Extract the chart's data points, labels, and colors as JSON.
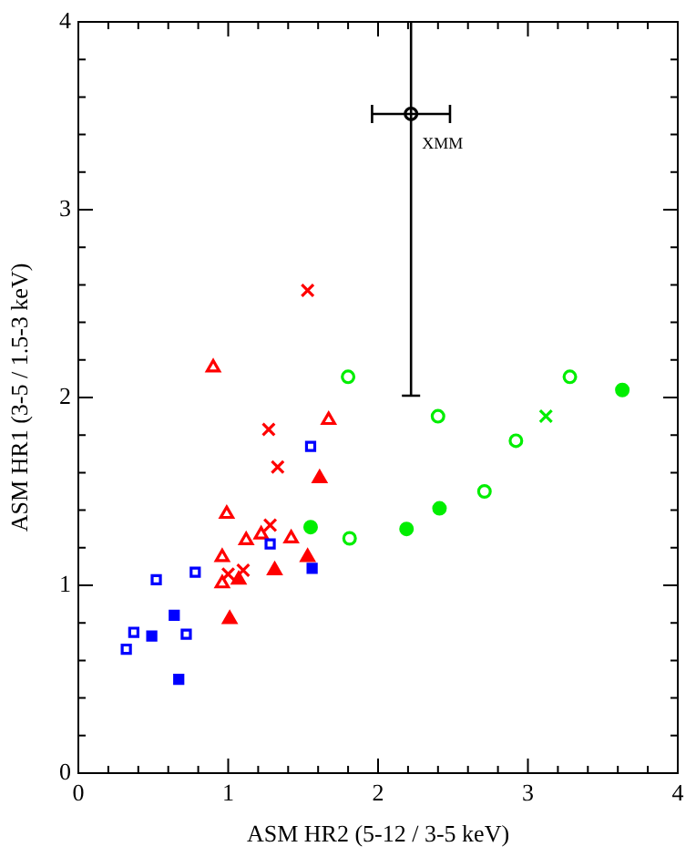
{
  "chart_data": {
    "type": "scatter",
    "xlabel": "ASM HR2 (5-12 / 3-5 keV)",
    "ylabel": "ASM HR1 (3-5 / 1.5-3 keV)",
    "xlim": [
      0,
      4
    ],
    "ylim": [
      0,
      4
    ],
    "xticks": [
      0,
      {
        "value": 0.2,
        "label": null
      },
      {
        "value": 0.4,
        "label": null
      },
      {
        "value": 0.6,
        "label": null
      },
      {
        "value": 0.8,
        "label": null
      },
      1,
      {
        "value": 1.2,
        "label": null
      },
      {
        "value": 1.4,
        "label": null
      },
      {
        "value": 1.6,
        "label": null
      },
      {
        "value": 1.8,
        "label": null
      },
      2,
      {
        "value": 2.2,
        "label": null
      },
      {
        "value": 2.4,
        "label": null
      },
      {
        "value": 2.6,
        "label": null
      },
      {
        "value": 2.8,
        "label": null
      },
      3,
      {
        "value": 3.2,
        "label": null
      },
      {
        "value": 3.4,
        "label": null
      },
      {
        "value": 3.6,
        "label": null
      },
      {
        "value": 3.8,
        "label": null
      },
      4
    ],
    "yticks": [
      0,
      {
        "value": 0.2,
        "label": null
      },
      {
        "value": 0.4,
        "label": null
      },
      {
        "value": 0.6,
        "label": null
      },
      {
        "value": 0.8,
        "label": null
      },
      1,
      {
        "value": 1.2,
        "label": null
      },
      {
        "value": 1.4,
        "label": null
      },
      {
        "value": 1.6,
        "label": null
      },
      {
        "value": 1.8,
        "label": null
      },
      2,
      {
        "value": 2.2,
        "label": null
      },
      {
        "value": 2.4,
        "label": null
      },
      {
        "value": 2.6,
        "label": null
      },
      {
        "value": 2.8,
        "label": null
      },
      3,
      {
        "value": 3.2,
        "label": null
      },
      {
        "value": 3.4,
        "label": null
      },
      {
        "value": 3.6,
        "label": null
      },
      {
        "value": 3.8,
        "label": null
      },
      4
    ],
    "grid": false,
    "legend": false,
    "annotations": [
      {
        "text": "XMM",
        "x": 2.22,
        "y": 3.51
      }
    ],
    "series": [
      {
        "color": "#0000ff",
        "marker": "square",
        "x": [
          0.32,
          0.37,
          0.52,
          0.72,
          0.78,
          1.28,
          1.55
        ],
        "values": [
          0.66,
          0.75,
          1.03,
          0.74,
          1.07,
          1.22,
          1.74
        ]
      },
      {
        "color": "#0000ff",
        "marker": "square",
        "x": [
          0.49,
          0.64,
          0.67,
          1.56
        ],
        "values": [
          0.73,
          0.84,
          0.5,
          1.09
        ]
      },
      {
        "color": "#ff0000",
        "marker": "triangle",
        "x": [
          0.9,
          0.99,
          0.96,
          0.96,
          1.12,
          1.22,
          1.42,
          1.67
        ],
        "values": [
          2.16,
          1.38,
          1.15,
          1.01,
          1.24,
          1.27,
          1.25,
          1.88
        ]
      },
      {
        "color": "#ff0000",
        "marker": "triangle",
        "x": [
          1.01,
          1.07,
          1.31,
          1.53,
          1.61
        ],
        "values": [
          0.82,
          1.03,
          1.08,
          1.15,
          1.57
        ]
      },
      {
        "color": "#ff0000",
        "marker": "cross",
        "x": [
          1.53,
          1.27,
          1.33,
          1.28,
          1.0,
          1.1
        ],
        "values": [
          2.57,
          1.83,
          1.63,
          1.32,
          1.06,
          1.08
        ]
      },
      {
        "color": "#00ee00",
        "marker": "circle",
        "x": [
          1.8,
          2.4,
          2.92,
          2.71,
          1.81,
          3.28
        ],
        "values": [
          2.11,
          1.9,
          1.77,
          1.5,
          1.25,
          2.11
        ]
      },
      {
        "color": "#00ee00",
        "marker": "circle",
        "x": [
          3.63,
          2.41,
          2.19,
          1.55
        ],
        "values": [
          2.04,
          1.41,
          1.3,
          1.31
        ]
      },
      {
        "color": "#00ee00",
        "marker": "cross",
        "x": [
          3.12
        ],
        "values": [
          1.9
        ]
      },
      {
        "color": "#000000",
        "marker": "circle",
        "x": [
          2.22
        ],
        "values": [
          3.51
        ],
        "errors": [
          [
            2.01,
            4
          ]
        ],
        "xerrors": [
          [
            1.96,
            2.48
          ]
        ]
      }
    ]
  }
}
